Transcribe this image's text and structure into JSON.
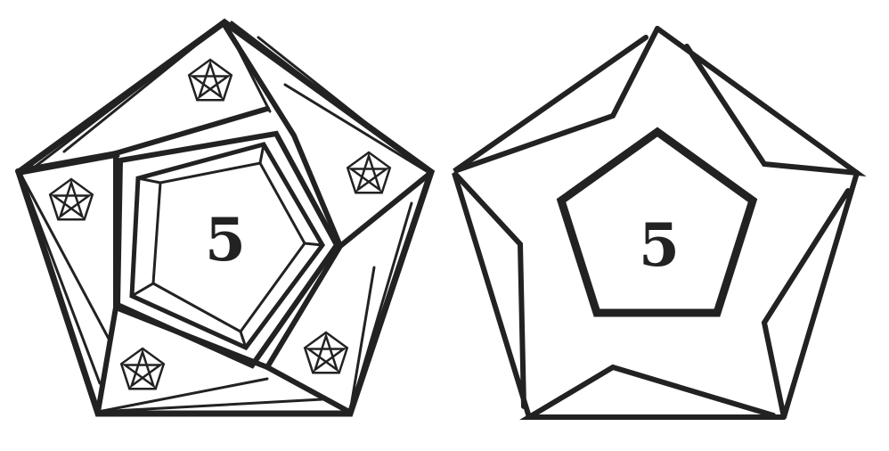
{
  "colors": {
    "ink": "#222222",
    "background": "#ffffff"
  },
  "figures": [
    {
      "id": "pentagonal-die-ornate",
      "face_number": "5",
      "ornament": "pentagram",
      "ornament_count": 5
    },
    {
      "id": "pentagonal-die-plain",
      "face_number": "5"
    }
  ]
}
